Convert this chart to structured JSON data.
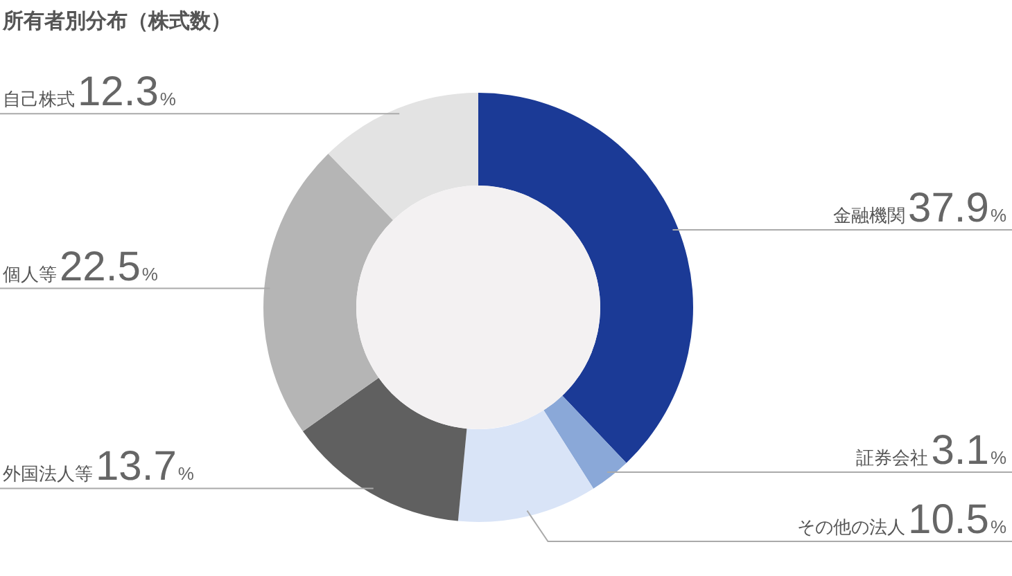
{
  "chart_data": {
    "type": "donut",
    "title": "所有者別分布（株式数）",
    "categories": [
      "金融機関",
      "証券会社",
      "その他の法人",
      "外国法人等",
      "個人等",
      "自己株式"
    ],
    "values": [
      37.9,
      3.1,
      10.5,
      13.7,
      22.5,
      12.3
    ],
    "value_labels": [
      "37.9%",
      "3.1%",
      "10.5%",
      "13.7%",
      "22.5%",
      "12.3%"
    ],
    "colors": [
      "#1b3a96",
      "#8aa8d8",
      "#d9e4f7",
      "#606060",
      "#b5b5b5",
      "#e3e3e3"
    ]
  }
}
